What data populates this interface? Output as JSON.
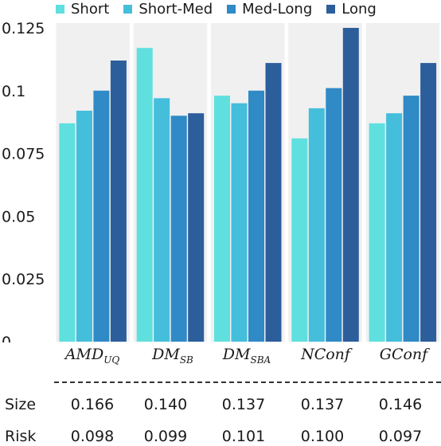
{
  "legend": [
    {
      "label": "Short",
      "color": "#5fe0de"
    },
    {
      "label": "Short-Med",
      "color": "#45bedc"
    },
    {
      "label": "Med-Long",
      "color": "#2f8ac6"
    },
    {
      "label": "Long",
      "color": "#2d5e9c"
    }
  ],
  "categories": [
    {
      "base": "AMD",
      "sub": "UQ"
    },
    {
      "base": "DM",
      "sub": "SB"
    },
    {
      "base": "DM",
      "sub": "SBA"
    },
    {
      "base": "NConf",
      "sub": ""
    },
    {
      "base": "GConf",
      "sub": ""
    }
  ],
  "chart_data": {
    "type": "bar",
    "categories": [
      "AMD_UQ",
      "DM_SB",
      "DM_SBA",
      "NConf",
      "GConf"
    ],
    "series": [
      {
        "name": "Short",
        "values": [
          0.087,
          0.117,
          0.098,
          0.081,
          0.087
        ]
      },
      {
        "name": "Short-Med",
        "values": [
          0.092,
          0.097,
          0.095,
          0.093,
          0.091
        ]
      },
      {
        "name": "Med-Long",
        "values": [
          0.1,
          0.09,
          0.1,
          0.101,
          0.098
        ]
      },
      {
        "name": "Long",
        "values": [
          0.112,
          0.091,
          0.111,
          0.125,
          0.111
        ]
      }
    ],
    "ylim": [
      0,
      0.125
    ],
    "yticks": [
      "0",
      "0.025",
      "0.05",
      "0.075",
      "0.1",
      "0.125"
    ],
    "grid": false,
    "legend_position": "top"
  },
  "table": {
    "size_label": "Size",
    "risk_label": "Risk",
    "size": [
      "0.166",
      "0.140",
      "0.137",
      "0.137",
      "0.146"
    ],
    "risk": [
      "0.098",
      "0.099",
      "0.101",
      "0.100",
      "0.097"
    ]
  }
}
